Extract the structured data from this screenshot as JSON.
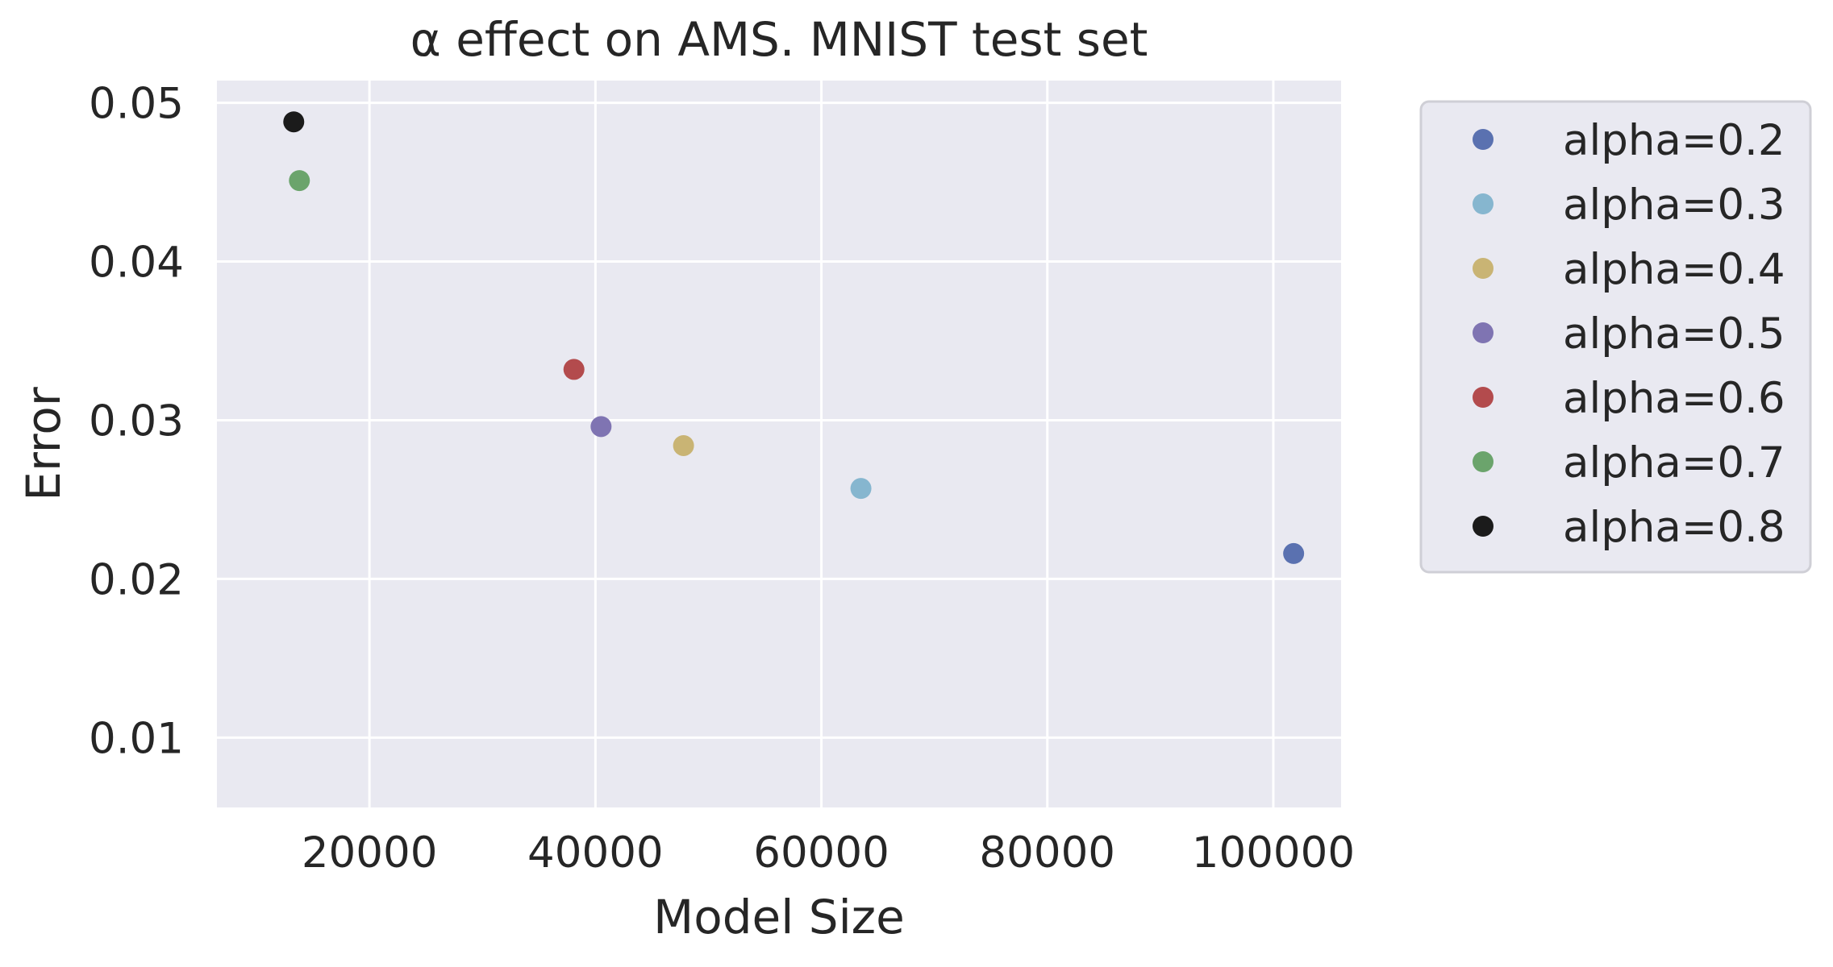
{
  "chart_data": {
    "type": "scatter",
    "title": "α effect on AMS. MNIST test set",
    "xlabel": "Model Size",
    "ylabel": "Error",
    "xlim": [
      6500,
      106000
    ],
    "ylim": [
      0.0056,
      0.0514
    ],
    "xticks": [
      20000,
      40000,
      60000,
      80000,
      100000
    ],
    "xtick_labels": [
      "20000",
      "40000",
      "60000",
      "80000",
      "100000"
    ],
    "yticks": [
      0.01,
      0.02,
      0.03,
      0.04,
      0.05
    ],
    "ytick_labels": [
      "0.01",
      "0.02",
      "0.03",
      "0.04",
      "0.05"
    ],
    "grid": true,
    "legend_position": "outside right, top",
    "series": [
      {
        "name": "alpha=0.2",
        "color": "#5a71b0",
        "points": [
          {
            "x": 101800,
            "y": 0.0216
          }
        ]
      },
      {
        "name": "alpha=0.3",
        "color": "#86b6cf",
        "points": [
          {
            "x": 63500,
            "y": 0.0257
          }
        ]
      },
      {
        "name": "alpha=0.4",
        "color": "#c9b474",
        "points": [
          {
            "x": 47800,
            "y": 0.0284
          }
        ]
      },
      {
        "name": "alpha=0.5",
        "color": "#7f74b2",
        "points": [
          {
            "x": 40500,
            "y": 0.0296
          }
        ]
      },
      {
        "name": "alpha=0.6",
        "color": "#b34b4d",
        "points": [
          {
            "x": 38100,
            "y": 0.0332
          }
        ]
      },
      {
        "name": "alpha=0.7",
        "color": "#6ba46c",
        "points": [
          {
            "x": 13800,
            "y": 0.0451
          }
        ]
      },
      {
        "name": "alpha=0.8",
        "color": "#1b1b1b",
        "points": [
          {
            "x": 13300,
            "y": 0.0488
          }
        ]
      }
    ]
  },
  "style": {
    "plot_background": "#e9e9f1",
    "grid_color": "#ffffff",
    "text_color": "#262626",
    "legend_background": "#e9e9f1",
    "legend_border": "#cfcfd6"
  }
}
